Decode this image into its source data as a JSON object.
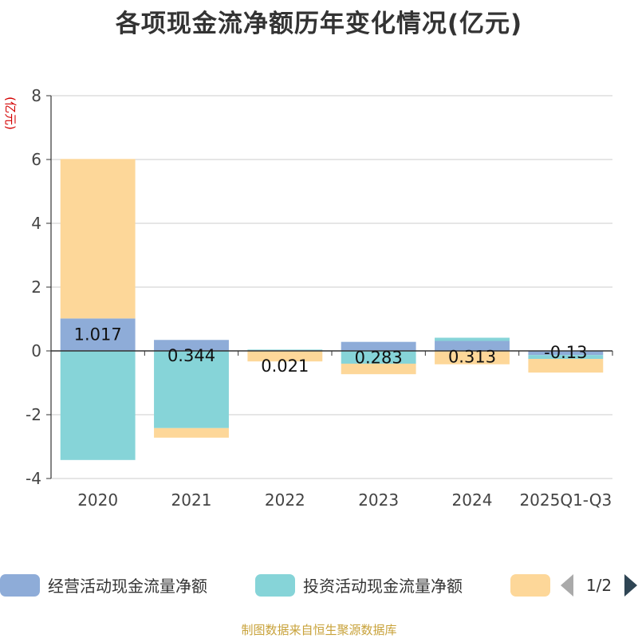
{
  "title": "各项现金流净额历年变化情况(亿元)",
  "source": "制图数据来自恒生聚源数据库",
  "chart_data": {
    "type": "bar",
    "stacked": true,
    "ylabel": "(亿元)",
    "ylim": [
      -4,
      8
    ],
    "yticks": [
      -4,
      -2,
      0,
      2,
      4,
      6,
      8
    ],
    "grid": true,
    "categories": [
      "2020",
      "2021",
      "2022",
      "2023",
      "2024",
      "2025Q1-Q3"
    ],
    "series": [
      {
        "name": "经营活动现金流量净额",
        "color": "#8eacd8",
        "values": [
          1.017,
          0.344,
          0.021,
          0.283,
          0.313,
          -0.13
        ]
      },
      {
        "name": "投资活动现金流量净额",
        "color": "#86d4d8",
        "values": [
          -3.42,
          -2.42,
          0.02,
          -0.4,
          0.1,
          -0.12
        ]
      },
      {
        "name": "",
        "color": "#fdd799",
        "values": [
          5.0,
          -0.3,
          -0.33,
          -0.33,
          -0.42,
          -0.43
        ]
      }
    ],
    "data_labels": [
      "1.017",
      "0.344",
      "0.021",
      "0.283",
      "0.313",
      "-0.13"
    ],
    "legend": {
      "position": "bottom",
      "page": "1/2"
    }
  }
}
